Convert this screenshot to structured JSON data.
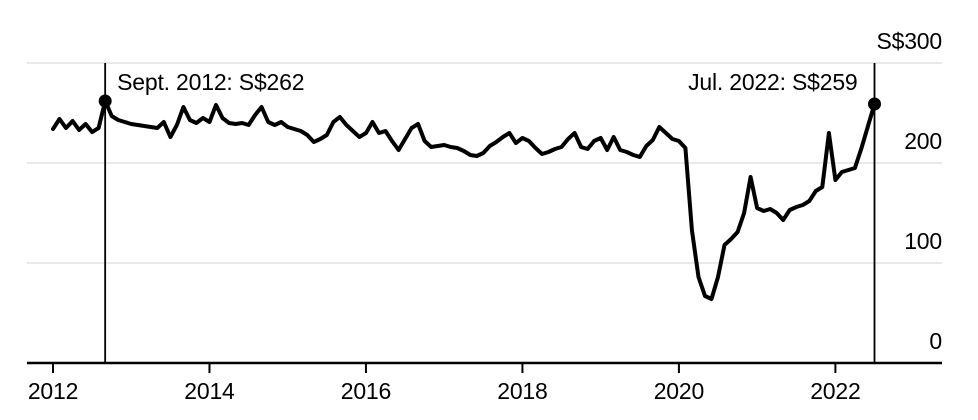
{
  "chart_data": {
    "type": "line",
    "frequency": "monthly",
    "x_start": "2012-01",
    "x_end": "2022-07",
    "ylim": [
      0,
      300
    ],
    "grid": "horizontal",
    "legend": "none",
    "colors": {
      "line": "#000000",
      "grid": "#e2e2e2",
      "axis": "#000000",
      "text": "#000000",
      "background": "#ffffff"
    },
    "y_ticks": [
      {
        "label": "S$300",
        "value": 300
      },
      {
        "label": "200",
        "value": 200
      },
      {
        "label": "100",
        "value": 100
      },
      {
        "label": "0",
        "value": 0
      }
    ],
    "x_ticks": [
      {
        "label": "2012",
        "month_index": 0
      },
      {
        "label": "2014",
        "month_index": 24
      },
      {
        "label": "2016",
        "month_index": 48
      },
      {
        "label": "2018",
        "month_index": 72
      },
      {
        "label": "2020",
        "month_index": 96
      },
      {
        "label": "2022",
        "month_index": 120
      }
    ],
    "series": [
      {
        "values": [
          234,
          244,
          235,
          242,
          233,
          239,
          231,
          235,
          262,
          247,
          243,
          241,
          239,
          238,
          237,
          236,
          235,
          241,
          226,
          238,
          256,
          243,
          240,
          245,
          241,
          258,
          245,
          240,
          239,
          240,
          238,
          248,
          256,
          241,
          238,
          241,
          236,
          234,
          232,
          228,
          221,
          224,
          228,
          241,
          246,
          238,
          232,
          226,
          230,
          241,
          230,
          232,
          222,
          213,
          224,
          235,
          239,
          222,
          216,
          217,
          218,
          216,
          215,
          212,
          208,
          207,
          210,
          217,
          221,
          226,
          230,
          220,
          225,
          222,
          215,
          209,
          211,
          214,
          216,
          224,
          230,
          216,
          214,
          222,
          225,
          213,
          226,
          213,
          211,
          208,
          206,
          217,
          223,
          236,
          230,
          224,
          222,
          215,
          133,
          86,
          67,
          64,
          86,
          118,
          124,
          131,
          150,
          186,
          155,
          152,
          154,
          150,
          143,
          153,
          156,
          158,
          162,
          172,
          176,
          230,
          183,
          191,
          193,
          195,
          215,
          237,
          259
        ]
      }
    ],
    "annotations": [
      {
        "label": "Sept. 2012: S$262",
        "month_index": 8,
        "value": 262,
        "align": "left"
      },
      {
        "label": "Jul. 2022: S$259",
        "month_index": 126,
        "value": 259,
        "align": "right"
      }
    ]
  }
}
